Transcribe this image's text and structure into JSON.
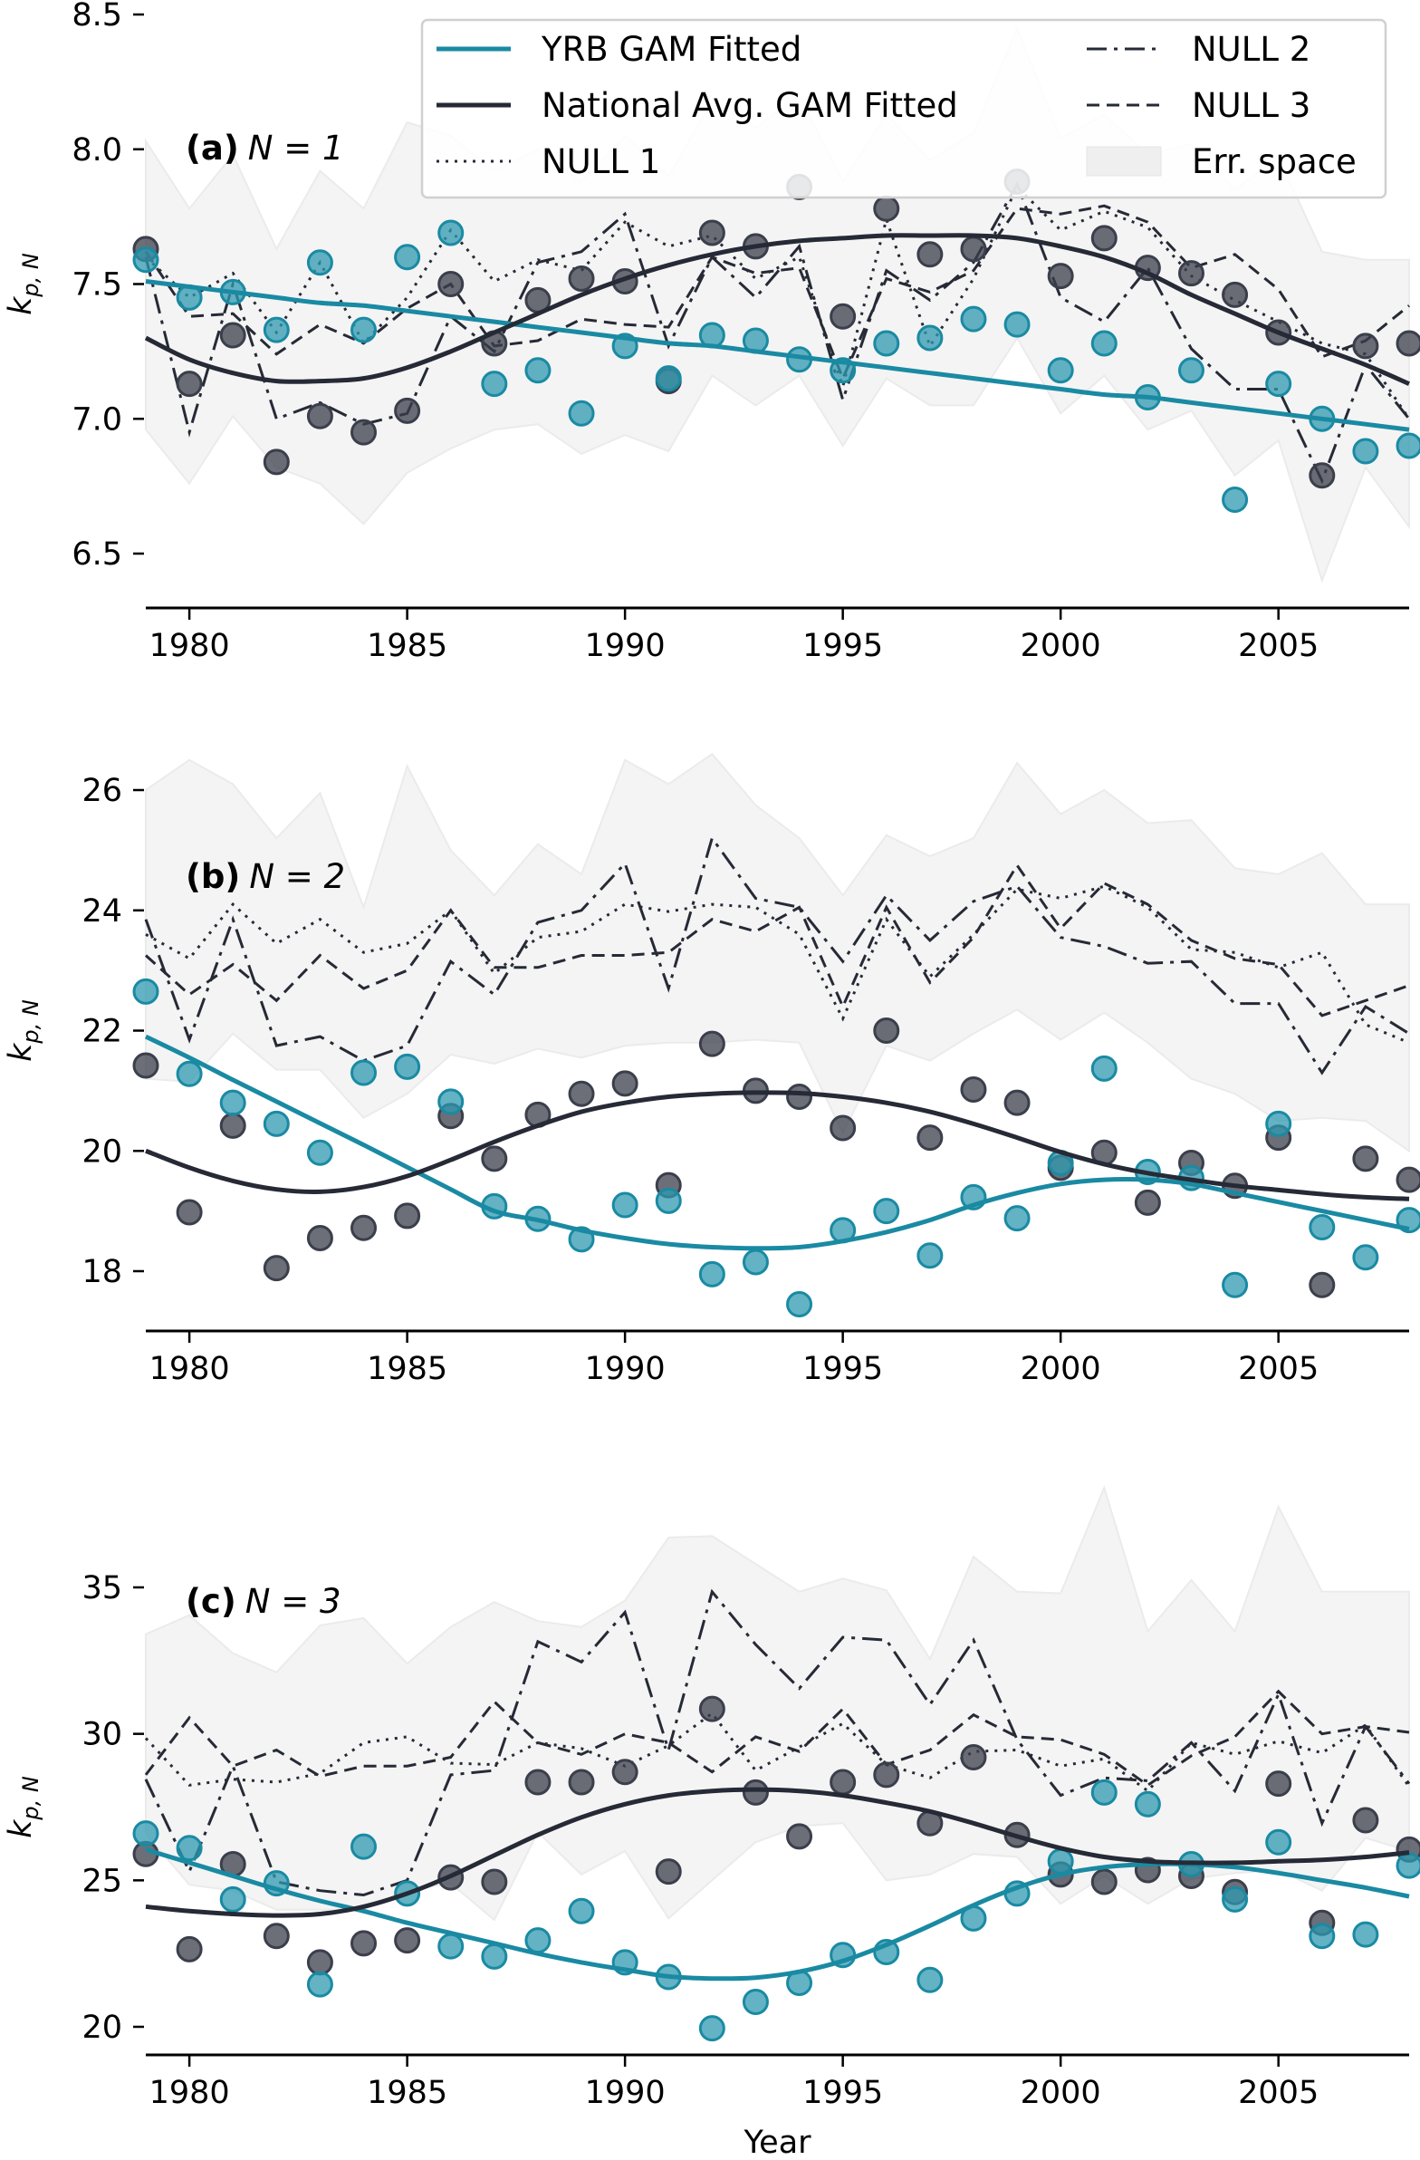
{
  "chart_data": [
    {
      "type": "line",
      "panel_label": "(a)",
      "panel_N": "N = 1",
      "xlabel": "",
      "ylabel": "k_{p,N}",
      "xlim": [
        1979,
        2008
      ],
      "ylim": [
        6.3,
        8.5
      ],
      "yticks": [
        6.5,
        7.0,
        7.5,
        8.0,
        8.5
      ],
      "ytick_labels": [
        "6.5",
        "7.0",
        "7.5",
        "8.0",
        "8.5"
      ],
      "xticks": [
        1980,
        1985,
        1990,
        1995,
        2000,
        2005
      ],
      "xtick_labels": [
        "1980",
        "1985",
        "1990",
        "1995",
        "2000",
        "2005"
      ],
      "x": [
        1979,
        1980,
        1981,
        1982,
        1983,
        1984,
        1985,
        1986,
        1987,
        1988,
        1989,
        1990,
        1991,
        1992,
        1993,
        1994,
        1995,
        1996,
        1997,
        1998,
        1999,
        2000,
        2001,
        2002,
        2003,
        2004,
        2005,
        2006,
        2007,
        2008
      ],
      "yrb_points": [
        7.59,
        7.45,
        7.47,
        7.33,
        7.58,
        7.33,
        7.6,
        7.69,
        7.13,
        7.18,
        7.02,
        7.27,
        7.15,
        7.31,
        7.29,
        7.22,
        7.18,
        7.28,
        7.3,
        7.37,
        7.35,
        7.18,
        7.28,
        7.08,
        7.18,
        6.7,
        7.13,
        7.0,
        6.88,
        6.9
      ],
      "national_points": [
        7.63,
        7.13,
        7.31,
        6.84,
        7.01,
        6.95,
        7.03,
        7.5,
        7.28,
        7.44,
        7.52,
        7.51,
        7.14,
        7.69,
        7.64,
        7.86,
        7.38,
        7.78,
        7.61,
        7.63,
        7.88,
        7.53,
        7.67,
        7.56,
        7.54,
        7.46,
        7.32,
        6.79,
        7.27,
        7.28
      ],
      "series": [
        {
          "name": "YRB GAM Fitted",
          "values": [
            7.51,
            7.49,
            7.47,
            7.45,
            7.43,
            7.42,
            7.4,
            7.38,
            7.36,
            7.34,
            7.32,
            7.3,
            7.28,
            7.27,
            7.25,
            7.23,
            7.21,
            7.19,
            7.17,
            7.15,
            7.13,
            7.11,
            7.09,
            7.08,
            7.06,
            7.04,
            7.02,
            7.0,
            6.98,
            6.96
          ]
        },
        {
          "name": "National Avg. GAM Fitted",
          "values": [
            7.3,
            7.22,
            7.17,
            7.14,
            7.14,
            7.15,
            7.19,
            7.25,
            7.32,
            7.39,
            7.46,
            7.52,
            7.57,
            7.61,
            7.64,
            7.66,
            7.67,
            7.68,
            7.68,
            7.68,
            7.67,
            7.64,
            7.6,
            7.54,
            7.46,
            7.39,
            7.32,
            7.26,
            7.2,
            7.13
          ]
        },
        {
          "name": "NULL 1",
          "values": [
            7.6,
            7.45,
            7.54,
            7.32,
            7.58,
            7.28,
            7.45,
            7.7,
            7.51,
            7.59,
            7.55,
            7.73,
            7.64,
            7.68,
            7.52,
            7.6,
            7.12,
            7.74,
            7.27,
            7.52,
            7.86,
            7.7,
            7.77,
            7.71,
            7.53,
            7.44,
            7.36,
            7.28,
            7.24,
            7.0
          ]
        },
        {
          "name": "NULL 2",
          "values": [
            7.6,
            6.95,
            7.5,
            7.0,
            7.06,
            6.98,
            7.02,
            7.38,
            7.25,
            7.58,
            7.62,
            7.76,
            7.27,
            7.6,
            7.45,
            7.64,
            7.07,
            7.55,
            7.44,
            7.58,
            7.87,
            7.45,
            7.36,
            7.56,
            7.26,
            7.11,
            7.11,
            6.77,
            7.2,
            7.0
          ]
        },
        {
          "name": "NULL 3",
          "values": [
            7.62,
            7.38,
            7.39,
            7.24,
            7.35,
            7.28,
            7.41,
            7.5,
            7.27,
            7.29,
            7.37,
            7.35,
            7.34,
            7.6,
            7.54,
            7.56,
            7.15,
            7.52,
            7.47,
            7.55,
            7.78,
            7.76,
            7.79,
            7.73,
            7.56,
            7.61,
            7.48,
            7.23,
            7.29,
            7.42
          ]
        }
      ],
      "err_space_upper": [
        8.03,
        7.78,
        7.98,
        7.63,
        7.92,
        7.78,
        8.1,
        8.05,
        7.92,
        8.0,
        7.88,
        8.05,
        7.9,
        8.18,
        8.08,
        8.2,
        7.88,
        8.13,
        7.96,
        8.06,
        8.45,
        8.04,
        8.13,
        7.98,
        8.02,
        7.85,
        7.97,
        7.62,
        7.59,
        7.59
      ],
      "err_space_lower": [
        6.96,
        6.76,
        7.01,
        6.82,
        6.76,
        6.61,
        6.8,
        6.89,
        6.96,
        6.98,
        6.87,
        6.94,
        6.88,
        7.16,
        7.05,
        7.16,
        6.9,
        7.15,
        7.05,
        7.05,
        7.3,
        7.02,
        7.16,
        6.96,
        7.03,
        6.79,
        6.92,
        6.4,
        6.82,
        6.6
      ]
    },
    {
      "type": "line",
      "panel_label": "(b)",
      "panel_N": "N = 2",
      "xlabel": "",
      "ylabel": "k_{p,N}",
      "xlim": [
        1979,
        2008
      ],
      "ylim": [
        17.0,
        27.2
      ],
      "yticks": [
        18,
        20,
        22,
        24,
        26
      ],
      "ytick_labels": [
        "18",
        "20",
        "22",
        "24",
        "26"
      ],
      "xticks": [
        1980,
        1985,
        1990,
        1995,
        2000,
        2005
      ],
      "xtick_labels": [
        "1980",
        "1985",
        "1990",
        "1995",
        "2000",
        "2005"
      ],
      "x": [
        1979,
        1980,
        1981,
        1982,
        1983,
        1984,
        1985,
        1986,
        1987,
        1988,
        1989,
        1990,
        1991,
        1992,
        1993,
        1994,
        1995,
        1996,
        1997,
        1998,
        1999,
        2000,
        2001,
        2002,
        2003,
        2004,
        2005,
        2006,
        2007,
        2008
      ],
      "yrb_points": [
        22.65,
        21.28,
        20.8,
        20.45,
        19.97,
        21.3,
        21.4,
        20.82,
        19.08,
        18.87,
        18.53,
        19.1,
        19.17,
        17.95,
        18.15,
        17.45,
        18.68,
        19.0,
        18.26,
        19.23,
        18.88,
        19.8,
        21.37,
        19.65,
        19.55,
        17.77,
        20.45,
        18.73,
        18.23,
        18.85
      ],
      "national_points": [
        21.42,
        18.98,
        20.42,
        18.05,
        18.55,
        18.72,
        18.92,
        20.58,
        19.87,
        20.6,
        20.95,
        21.12,
        19.43,
        21.78,
        21.0,
        20.9,
        20.38,
        22.0,
        20.22,
        21.02,
        20.8,
        19.72,
        19.97,
        19.14,
        19.8,
        19.42,
        20.22,
        17.77,
        19.87,
        19.52
      ],
      "series": [
        {
          "name": "YRB GAM Fitted",
          "values": [
            21.9,
            21.55,
            21.18,
            20.82,
            20.46,
            20.1,
            19.73,
            19.36,
            19.0,
            18.85,
            18.68,
            18.55,
            18.45,
            18.4,
            18.38,
            18.4,
            18.5,
            18.65,
            18.85,
            19.1,
            19.3,
            19.45,
            19.52,
            19.52,
            19.45,
            19.3,
            19.15,
            19.0,
            18.85,
            18.7
          ]
        },
        {
          "name": "National Avg. GAM Fitted",
          "values": [
            20.0,
            19.72,
            19.5,
            19.36,
            19.32,
            19.4,
            19.58,
            19.85,
            20.15,
            20.42,
            20.65,
            20.8,
            20.9,
            20.95,
            20.97,
            20.96,
            20.9,
            20.8,
            20.65,
            20.45,
            20.22,
            19.98,
            19.78,
            19.63,
            19.52,
            19.42,
            19.35,
            19.28,
            19.23,
            19.2
          ]
        },
        {
          "name": "NULL 1",
          "values": [
            23.6,
            23.2,
            24.1,
            23.45,
            23.85,
            23.3,
            23.45,
            24.0,
            22.95,
            23.55,
            23.65,
            24.1,
            23.98,
            24.1,
            24.05,
            23.6,
            22.2,
            23.85,
            22.9,
            23.6,
            24.35,
            24.2,
            24.4,
            24.05,
            23.35,
            23.3,
            23.05,
            23.3,
            22.1,
            21.8
          ]
        },
        {
          "name": "NULL 2",
          "values": [
            23.85,
            21.85,
            23.85,
            21.75,
            21.9,
            21.5,
            21.75,
            23.15,
            22.6,
            23.8,
            24.0,
            24.78,
            22.7,
            25.2,
            24.2,
            24.05,
            23.15,
            24.25,
            23.5,
            24.15,
            24.4,
            23.55,
            23.4,
            23.12,
            23.15,
            22.45,
            22.45,
            21.3,
            22.4,
            21.95
          ]
        },
        {
          "name": "NULL 3",
          "values": [
            23.25,
            22.6,
            23.1,
            22.5,
            23.25,
            22.7,
            23.0,
            24.0,
            23.05,
            23.05,
            23.25,
            23.25,
            23.3,
            23.85,
            23.65,
            24.05,
            22.4,
            24.05,
            22.8,
            23.55,
            24.75,
            23.7,
            24.45,
            24.1,
            23.5,
            23.2,
            23.1,
            22.25,
            22.5,
            22.75
          ]
        }
      ],
      "err_space_upper": [
        26.0,
        26.5,
        26.1,
        25.2,
        25.95,
        24.05,
        26.4,
        25.0,
        24.25,
        25.1,
        24.6,
        26.5,
        26.1,
        26.6,
        25.75,
        25.2,
        24.25,
        25.25,
        24.9,
        25.2,
        26.45,
        25.6,
        26.0,
        25.45,
        25.5,
        24.7,
        24.6,
        24.95,
        24.1,
        24.1
      ],
      "err_space_lower": [
        21.2,
        21.15,
        21.95,
        21.35,
        21.35,
        20.55,
        20.95,
        21.6,
        21.45,
        21.7,
        21.55,
        21.75,
        21.8,
        21.8,
        21.85,
        21.8,
        20.3,
        21.75,
        21.5,
        21.95,
        22.35,
        21.85,
        22.3,
        21.8,
        21.2,
        20.95,
        20.5,
        20.55,
        20.5,
        20.0
      ]
    },
    {
      "type": "line",
      "panel_label": "(c)",
      "panel_N": "N = 3",
      "xlabel": "Year",
      "ylabel": "k_{p,N}",
      "xlim": [
        1979,
        2008
      ],
      "ylim": [
        19.0,
        38.5
      ],
      "yticks": [
        20,
        25,
        30,
        35
      ],
      "ytick_labels": [
        "20",
        "25",
        "30",
        "35"
      ],
      "xticks": [
        1980,
        1985,
        1990,
        1995,
        2000,
        2005
      ],
      "xtick_labels": [
        "1980",
        "1985",
        "1990",
        "1995",
        "2000",
        "2005"
      ],
      "x": [
        1979,
        1980,
        1981,
        1982,
        1983,
        1984,
        1985,
        1986,
        1987,
        1988,
        1989,
        1990,
        1991,
        1992,
        1993,
        1994,
        1995,
        1996,
        1997,
        1998,
        1999,
        2000,
        2001,
        2002,
        2003,
        2004,
        2005,
        2006,
        2007,
        2008
      ],
      "yrb_points": [
        26.6,
        26.1,
        24.35,
        24.9,
        21.45,
        26.15,
        24.55,
        22.75,
        22.4,
        22.95,
        23.95,
        22.2,
        21.7,
        19.95,
        20.85,
        21.5,
        22.45,
        22.55,
        21.6,
        23.7,
        24.55,
        25.65,
        28.0,
        27.6,
        25.55,
        24.35,
        26.3,
        23.1,
        23.15,
        25.5
      ],
      "national_points": [
        25.9,
        22.65,
        25.55,
        23.1,
        22.2,
        22.85,
        22.95,
        25.1,
        24.95,
        28.35,
        28.35,
        28.7,
        25.3,
        30.85,
        28.0,
        26.5,
        28.35,
        28.6,
        26.95,
        29.2,
        26.55,
        25.2,
        24.95,
        25.35,
        25.15,
        24.6,
        28.3,
        23.55,
        27.05,
        26.05
      ],
      "series": [
        {
          "name": "YRB GAM Fitted",
          "values": [
            26.05,
            25.6,
            25.15,
            24.7,
            24.3,
            23.95,
            23.55,
            23.2,
            22.85,
            22.5,
            22.2,
            21.95,
            21.72,
            21.65,
            21.68,
            21.88,
            22.25,
            22.8,
            23.45,
            24.15,
            24.75,
            25.2,
            25.45,
            25.55,
            25.55,
            25.45,
            25.25,
            25.0,
            24.75,
            24.45
          ]
        },
        {
          "name": "National Avg. GAM Fitted",
          "values": [
            24.1,
            23.95,
            23.85,
            23.8,
            23.85,
            24.1,
            24.55,
            25.15,
            25.85,
            26.55,
            27.15,
            27.6,
            27.9,
            28.05,
            28.1,
            28.05,
            27.9,
            27.65,
            27.35,
            26.95,
            26.5,
            26.1,
            25.8,
            25.65,
            25.6,
            25.6,
            25.65,
            25.7,
            25.8,
            25.95
          ]
        },
        {
          "name": "NULL 1",
          "values": [
            29.85,
            28.25,
            28.45,
            28.35,
            28.65,
            29.7,
            29.9,
            29.0,
            28.95,
            29.7,
            29.5,
            28.9,
            29.6,
            30.7,
            28.75,
            29.55,
            30.35,
            28.95,
            28.5,
            29.4,
            29.45,
            28.9,
            29.15,
            28.05,
            29.7,
            29.3,
            29.75,
            29.35,
            30.3,
            28.2
          ]
        },
        {
          "name": "NULL 2",
          "values": [
            28.45,
            25.3,
            28.9,
            24.95,
            24.65,
            24.5,
            25.0,
            28.6,
            28.75,
            33.15,
            32.45,
            34.15,
            29.45,
            34.85,
            33.05,
            31.55,
            33.3,
            33.2,
            31.0,
            33.2,
            29.8,
            27.9,
            28.5,
            28.4,
            29.7,
            28.05,
            31.35,
            26.95,
            30.25,
            28.3
          ]
        },
        {
          "name": "NULL 3",
          "values": [
            28.6,
            30.55,
            28.9,
            29.45,
            28.55,
            28.9,
            28.9,
            29.2,
            31.1,
            29.7,
            29.3,
            30.0,
            29.7,
            28.7,
            29.9,
            29.4,
            30.85,
            28.95,
            29.45,
            30.65,
            29.9,
            29.8,
            29.3,
            28.25,
            29.25,
            29.9,
            31.45,
            30.0,
            30.25,
            30.05
          ]
        }
      ],
      "err_space_upper": [
        33.4,
        34.05,
        32.75,
        32.1,
        33.7,
        33.95,
        32.4,
        33.65,
        34.5,
        33.85,
        33.65,
        34.55,
        36.7,
        36.75,
        35.8,
        34.85,
        35.3,
        34.9,
        32.55,
        36.05,
        34.85,
        34.8,
        38.4,
        33.5,
        35.25,
        33.5,
        37.75,
        34.85,
        34.85,
        34.85
      ],
      "err_space_lower": [
        26.6,
        24.85,
        24.65,
        24.0,
        24.0,
        24.0,
        24.65,
        24.9,
        23.65,
        26.65,
        25.2,
        26.0,
        23.7,
        25.0,
        26.3,
        26.85,
        26.95,
        25.0,
        25.2,
        25.9,
        25.8,
        24.2,
        25.15,
        24.2,
        25.05,
        25.25,
        25.35,
        24.65,
        26.45,
        26.0
      ]
    }
  ],
  "legend": {
    "placement": "top-right",
    "items": [
      {
        "label": "YRB GAM Fitted",
        "style": "solid",
        "color": "#1a8aa3"
      },
      {
        "label": "National Avg. GAM Fitted",
        "style": "solid",
        "color": "#262a36"
      },
      {
        "label": "NULL 1",
        "style": "dotted",
        "color": "#262a36"
      },
      {
        "label": "NULL 2",
        "style": "dashdot",
        "color": "#262a36"
      },
      {
        "label": "NULL 3",
        "style": "dashed",
        "color": "#262a36"
      },
      {
        "label": "Err. space",
        "style": "patch",
        "color": "#f2f2f2"
      }
    ]
  },
  "colors": {
    "yrb": "#1a8aa3",
    "yrb_point": "#2f99b0",
    "national": "#262a36",
    "national_point": "#3b3f4b",
    "err_fill": "#ececec"
  }
}
